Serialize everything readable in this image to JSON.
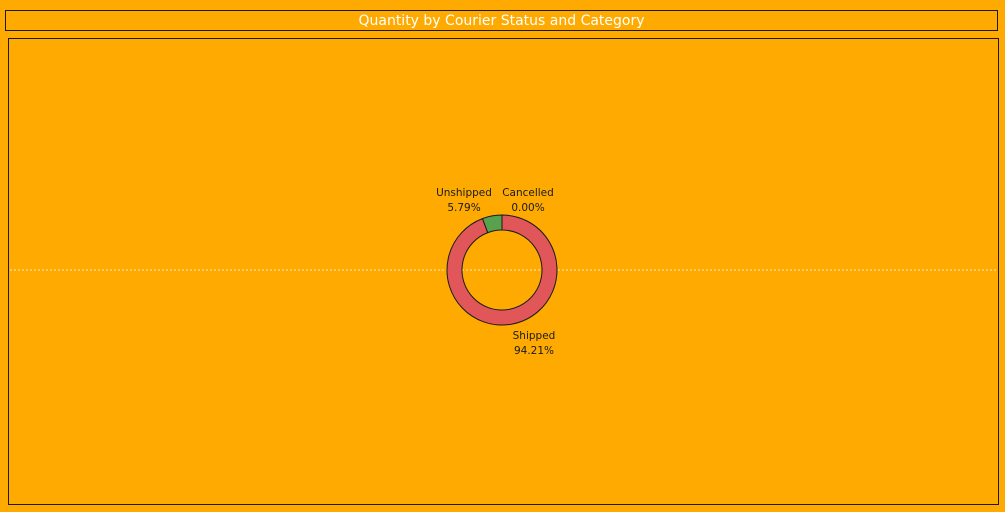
{
  "title": "Quantity by Courier Status and Category",
  "colors": {
    "background": "#ffaa00",
    "title_text": "#ffffff",
    "border": "#1a1a1a",
    "gridline": "#ffffff"
  },
  "chart_data": {
    "type": "pie",
    "style": "donut",
    "title": "Quantity by Courier Status and Category",
    "slices": [
      {
        "label": "Shipped",
        "value": 94.21,
        "value_label": "94.21%",
        "color": "#e15759"
      },
      {
        "label": "Unshipped",
        "value": 5.79,
        "value_label": "5.79%",
        "color": "#59a14f"
      },
      {
        "label": "Cancelled",
        "value": 0.0,
        "value_label": "0.00%",
        "color": "#4e79a7"
      }
    ],
    "legend": "none",
    "grid": false
  }
}
